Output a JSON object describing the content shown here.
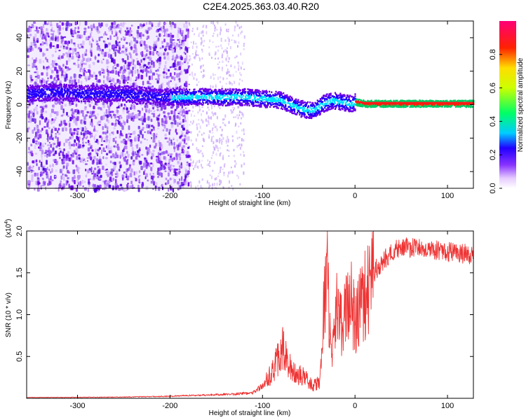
{
  "title": "C2E4.2025.363.03.40.R20",
  "chart_data": [
    {
      "type": "heatmap",
      "xlabel": "Height of straight line (km)",
      "ylabel": "Frequency (Hz)",
      "xlim": [
        -355,
        128
      ],
      "ylim": [
        -50,
        50
      ],
      "xticks": [
        -300,
        -200,
        -100,
        0,
        100
      ],
      "yticks": [
        -40,
        -20,
        0,
        20,
        40
      ],
      "ridge": {
        "x": [
          -355,
          -320,
          -300,
          -250,
          -210,
          -180,
          -150,
          -120,
          -100,
          -80,
          -60,
          -45,
          -35,
          -25,
          -15,
          -5,
          0,
          10,
          50,
          128
        ],
        "y": [
          7,
          8,
          7,
          7,
          5,
          5,
          5,
          5,
          4,
          3,
          -2,
          -3,
          1,
          3,
          2,
          1,
          2,
          1,
          1,
          1
        ]
      },
      "colorbar": {
        "label": "Normalized spectral amplitude",
        "range": [
          0,
          1
        ],
        "ticks": [
          0.0,
          0.2,
          0.4,
          0.6,
          0.8
        ]
      }
    },
    {
      "type": "line",
      "xlabel": "Height of straight line (km)",
      "ylabel": "SNR (10 * v/v)",
      "y_multiplier": "(x10",
      "y_multiplier_exp": "4",
      "xlim": [
        -355,
        128
      ],
      "ylim": [
        0,
        20000
      ],
      "xticks": [
        -300,
        -200,
        -100,
        0,
        100
      ],
      "yticks": [
        5000,
        10000,
        15000,
        20000
      ],
      "ytick_labels": [
        "0.5",
        "1.0",
        "1.5",
        "2.0"
      ],
      "series": [
        {
          "color": "#ee3333",
          "x": [
            -355,
            -300,
            -250,
            -200,
            -160,
            -130,
            -110,
            -100,
            -90,
            -82,
            -78,
            -72,
            -65,
            -55,
            -45,
            -38,
            -34,
            -30,
            -28,
            -25,
            -20,
            -15,
            -10,
            -5,
            0,
            5,
            10,
            15,
            20,
            30,
            40,
            50,
            60,
            80,
            100,
            128
          ],
          "y": [
            100,
            120,
            150,
            250,
            400,
            500,
            700,
            1500,
            3000,
            5000,
            6000,
            4000,
            3000,
            2500,
            1500,
            2000,
            10000,
            18000,
            8000,
            5000,
            11000,
            9000,
            10000,
            12000,
            9000,
            11000,
            12000,
            13000,
            15000,
            16500,
            17500,
            18000,
            18000,
            17800,
            17500,
            17200
          ]
        }
      ]
    }
  ]
}
